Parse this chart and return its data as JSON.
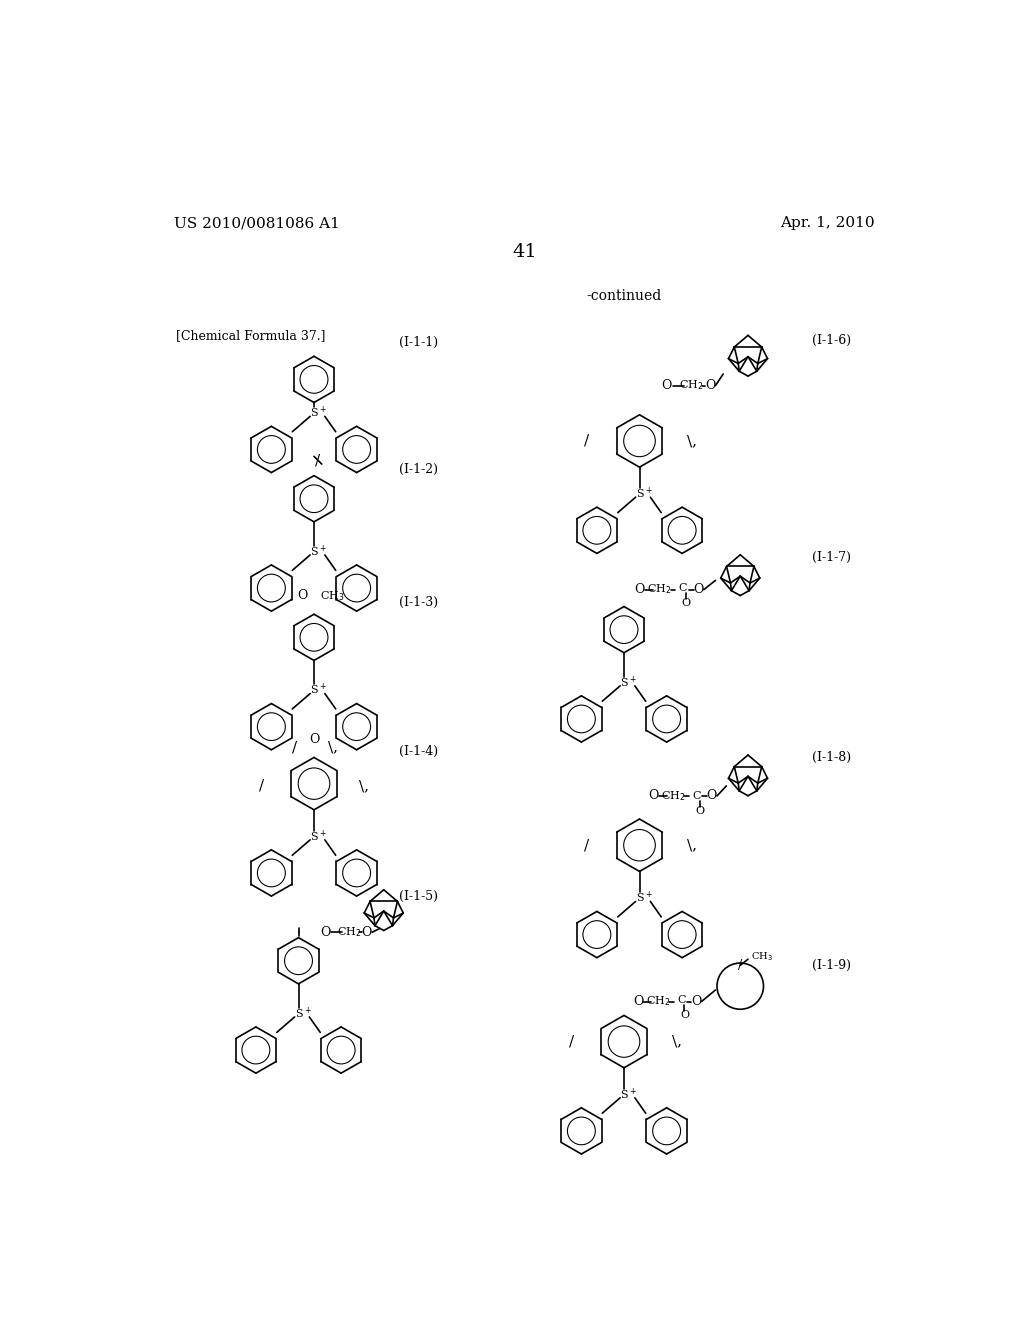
{
  "page_number": "41",
  "patent_number": "US 2010/0081086 A1",
  "patent_date": "Apr. 1, 2010",
  "continued_label": "-continued",
  "chemical_formula_label": "[Chemical Formula 37.]",
  "background_color": "#ffffff",
  "text_color": "#000000",
  "labels_left": [
    "(I-1-1)",
    "(I-1-2)",
    "(I-1-3)",
    "(I-1-4)",
    "(I-1-5)"
  ],
  "labels_right": [
    "(I-1-6)",
    "(I-1-7)",
    "(I-1-8)",
    "(I-1-9)"
  ],
  "font_size_header": 11,
  "font_size_label": 9,
  "font_size_page": 14
}
